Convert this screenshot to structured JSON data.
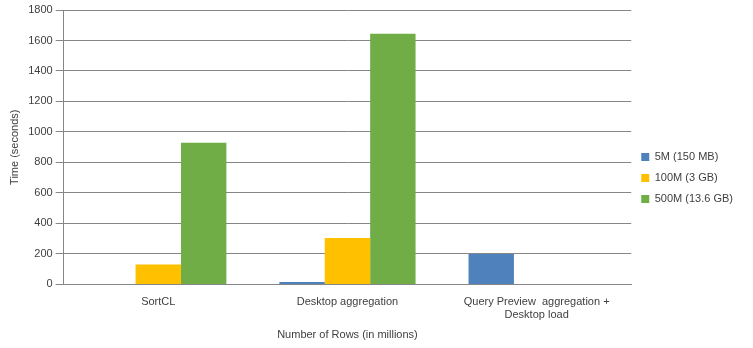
{
  "chart_data": {
    "type": "bar",
    "categories": [
      "SortCL",
      "Desktop aggregation",
      [
        "Query Preview  aggregation +",
        "Desktop load"
      ]
    ],
    "series": [
      {
        "name": "5M (150 MB)",
        "color": "#4f81bd",
        "values": [
          null,
          15,
          200
        ]
      },
      {
        "name": "100M (3 GB)",
        "color": "#ffc000",
        "values": [
          130,
          305,
          null
        ]
      },
      {
        "name": "500M (13.6 GB)",
        "color": "#70ad47",
        "values": [
          930,
          1645,
          null
        ]
      }
    ],
    "x_label": "Number of Rows (in millions)",
    "y_label": "Time (seconds)",
    "ylim": [
      0,
      1800
    ],
    "yticks": [
      0,
      200,
      400,
      600,
      800,
      1000,
      1200,
      1400,
      1600,
      1800
    ],
    "grid": true,
    "legend": "right"
  }
}
